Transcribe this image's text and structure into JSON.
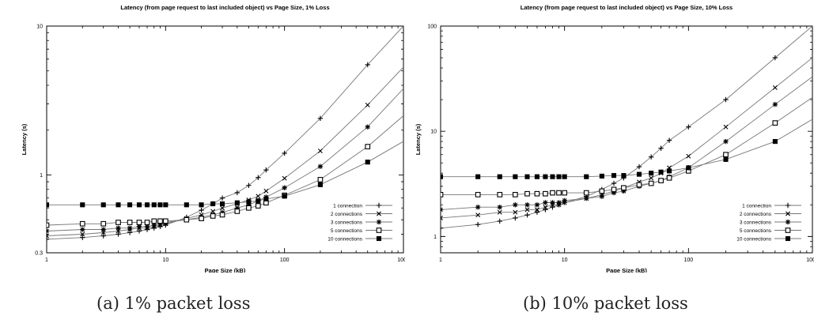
{
  "chart_data": [
    {
      "type": "line",
      "title": "Latency (from page request to last included object) vs Page Size, 1% Loss",
      "xlabel": "Page Size (kB)",
      "ylabel": "Latency (s)",
      "xscale": "log",
      "yscale": "log",
      "xlim": [
        1,
        1000
      ],
      "ylim": [
        0.3,
        10
      ],
      "xticks": [
        1,
        10,
        100,
        1000
      ],
      "xtick_labels": [
        "1",
        "10",
        "100",
        "1000"
      ],
      "yticks": [
        0.3,
        1,
        10
      ],
      "ytick_labels": [
        "0.3",
        "1",
        "10"
      ],
      "grid": false,
      "legend_position": "bottom-right",
      "series": [
        {
          "name": "1 connection",
          "marker": "plus",
          "x": [
            1,
            2,
            3,
            4,
            5,
            6,
            7,
            8,
            9,
            10,
            15,
            20,
            25,
            30,
            40,
            50,
            60,
            70,
            100,
            200,
            500
          ],
          "y": [
            0.37,
            0.38,
            0.39,
            0.4,
            0.41,
            0.42,
            0.43,
            0.44,
            0.45,
            0.46,
            0.52,
            0.58,
            0.64,
            0.7,
            0.76,
            0.85,
            0.96,
            1.08,
            1.4,
            2.4,
            5.5
          ],
          "fit_end": 10.0
        },
        {
          "name": "2 connections",
          "marker": "x",
          "x": [
            1,
            2,
            3,
            4,
            5,
            6,
            7,
            8,
            9,
            10,
            15,
            20,
            25,
            30,
            40,
            50,
            60,
            70,
            100,
            200,
            500
          ],
          "y": [
            0.39,
            0.4,
            0.41,
            0.42,
            0.43,
            0.44,
            0.44,
            0.45,
            0.46,
            0.47,
            0.51,
            0.54,
            0.57,
            0.6,
            0.64,
            0.68,
            0.72,
            0.78,
            0.95,
            1.45,
            2.95
          ],
          "fit_end": 5.3
        },
        {
          "name": "3 connections",
          "marker": "star",
          "x": [
            1,
            2,
            3,
            4,
            5,
            6,
            7,
            8,
            9,
            10,
            15,
            20,
            25,
            30,
            40,
            50,
            60,
            70,
            100,
            200,
            500
          ],
          "y": [
            0.42,
            0.43,
            0.43,
            0.44,
            0.44,
            0.45,
            0.45,
            0.46,
            0.47,
            0.48,
            0.5,
            0.52,
            0.54,
            0.56,
            0.6,
            0.63,
            0.67,
            0.71,
            0.82,
            1.14,
            2.1
          ],
          "fit_end": 3.8
        },
        {
          "name": "5 connections",
          "marker": "square-open",
          "x": [
            1,
            2,
            3,
            4,
            5,
            6,
            7,
            8,
            9,
            10,
            15,
            20,
            25,
            30,
            40,
            50,
            60,
            70,
            100,
            200,
            500
          ],
          "y": [
            0.46,
            0.47,
            0.47,
            0.48,
            0.48,
            0.48,
            0.48,
            0.49,
            0.49,
            0.49,
            0.5,
            0.51,
            0.53,
            0.54,
            0.57,
            0.6,
            0.62,
            0.65,
            0.73,
            0.93,
            1.55
          ],
          "fit_end": 2.5
        },
        {
          "name": "10 connections",
          "marker": "square-filled",
          "x": [
            1,
            2,
            3,
            4,
            5,
            6,
            7,
            8,
            9,
            10,
            15,
            20,
            25,
            30,
            40,
            50,
            60,
            70,
            100,
            200,
            500
          ],
          "y": [
            0.63,
            0.63,
            0.63,
            0.63,
            0.63,
            0.63,
            0.63,
            0.63,
            0.63,
            0.63,
            0.63,
            0.63,
            0.64,
            0.64,
            0.65,
            0.66,
            0.67,
            0.69,
            0.72,
            0.86,
            1.22
          ],
          "fit_end": 1.68
        }
      ]
    },
    {
      "type": "line",
      "title": "Latency (from page request to last included object) vs Page Size, 10% Loss",
      "xlabel": "Page Size (kB)",
      "ylabel": "Latency (s)",
      "xscale": "log",
      "yscale": "log",
      "xlim": [
        1,
        1000
      ],
      "ylim": [
        0.7,
        100
      ],
      "xticks": [
        1,
        10,
        100,
        1000
      ],
      "xtick_labels": [
        "1",
        "10",
        "100",
        "1000"
      ],
      "yticks": [
        1,
        10,
        100
      ],
      "ytick_labels": [
        "1",
        "10",
        "100"
      ],
      "grid": false,
      "legend_position": "bottom-right",
      "series": [
        {
          "name": "1 connection",
          "marker": "plus",
          "x": [
            1,
            2,
            3,
            4,
            5,
            6,
            7,
            8,
            9,
            10,
            15,
            20,
            25,
            30,
            40,
            50,
            60,
            70,
            100,
            200,
            500
          ],
          "y": [
            1.2,
            1.3,
            1.4,
            1.5,
            1.6,
            1.7,
            1.8,
            1.9,
            2.0,
            2.1,
            2.4,
            2.8,
            3.2,
            3.6,
            4.6,
            5.7,
            6.9,
            8.2,
            11.0,
            20.0,
            50.0
          ],
          "fit_end": 100.0
        },
        {
          "name": "2 connections",
          "marker": "x",
          "x": [
            1,
            2,
            3,
            4,
            5,
            6,
            7,
            8,
            9,
            10,
            15,
            20,
            25,
            30,
            40,
            50,
            60,
            70,
            100,
            200,
            500
          ],
          "y": [
            1.5,
            1.6,
            1.7,
            1.7,
            1.8,
            1.8,
            1.9,
            2.0,
            2.0,
            2.1,
            2.3,
            2.5,
            2.7,
            2.9,
            3.3,
            3.6,
            4.0,
            4.5,
            5.8,
            11.0,
            26.0
          ],
          "fit_end": 50.0
        },
        {
          "name": "3 connections",
          "marker": "star",
          "x": [
            1,
            2,
            3,
            4,
            5,
            6,
            7,
            8,
            9,
            10,
            15,
            20,
            25,
            30,
            40,
            50,
            60,
            70,
            100,
            200,
            500
          ],
          "y": [
            1.8,
            1.9,
            1.9,
            2.0,
            2.0,
            2.0,
            2.1,
            2.1,
            2.1,
            2.2,
            2.3,
            2.4,
            2.6,
            2.7,
            3.0,
            3.2,
            3.4,
            3.7,
            4.5,
            8.0,
            18.0
          ],
          "fit_end": 33.0
        },
        {
          "name": "5 connections",
          "marker": "square-open",
          "x": [
            1,
            2,
            3,
            4,
            5,
            6,
            7,
            8,
            9,
            10,
            15,
            20,
            25,
            30,
            40,
            50,
            60,
            70,
            100,
            200,
            500
          ],
          "y": [
            2.5,
            2.5,
            2.5,
            2.5,
            2.55,
            2.55,
            2.55,
            2.6,
            2.6,
            2.6,
            2.6,
            2.7,
            2.8,
            2.9,
            3.1,
            3.2,
            3.4,
            3.6,
            4.2,
            6.0,
            12.0
          ],
          "fit_end": 21.0
        },
        {
          "name": "10 connections",
          "marker": "square-filled",
          "x": [
            1,
            2,
            3,
            4,
            5,
            6,
            7,
            8,
            9,
            10,
            15,
            20,
            25,
            30,
            40,
            50,
            60,
            70,
            100,
            200,
            500
          ],
          "y": [
            3.7,
            3.7,
            3.7,
            3.7,
            3.7,
            3.7,
            3.7,
            3.7,
            3.7,
            3.7,
            3.7,
            3.75,
            3.8,
            3.8,
            3.9,
            4.0,
            4.1,
            4.2,
            4.5,
            5.4,
            8.0
          ],
          "fit_end": 13.0
        }
      ]
    }
  ],
  "captions": {
    "a": "(a) 1% packet loss",
    "b": "(b) 10% packet loss"
  }
}
